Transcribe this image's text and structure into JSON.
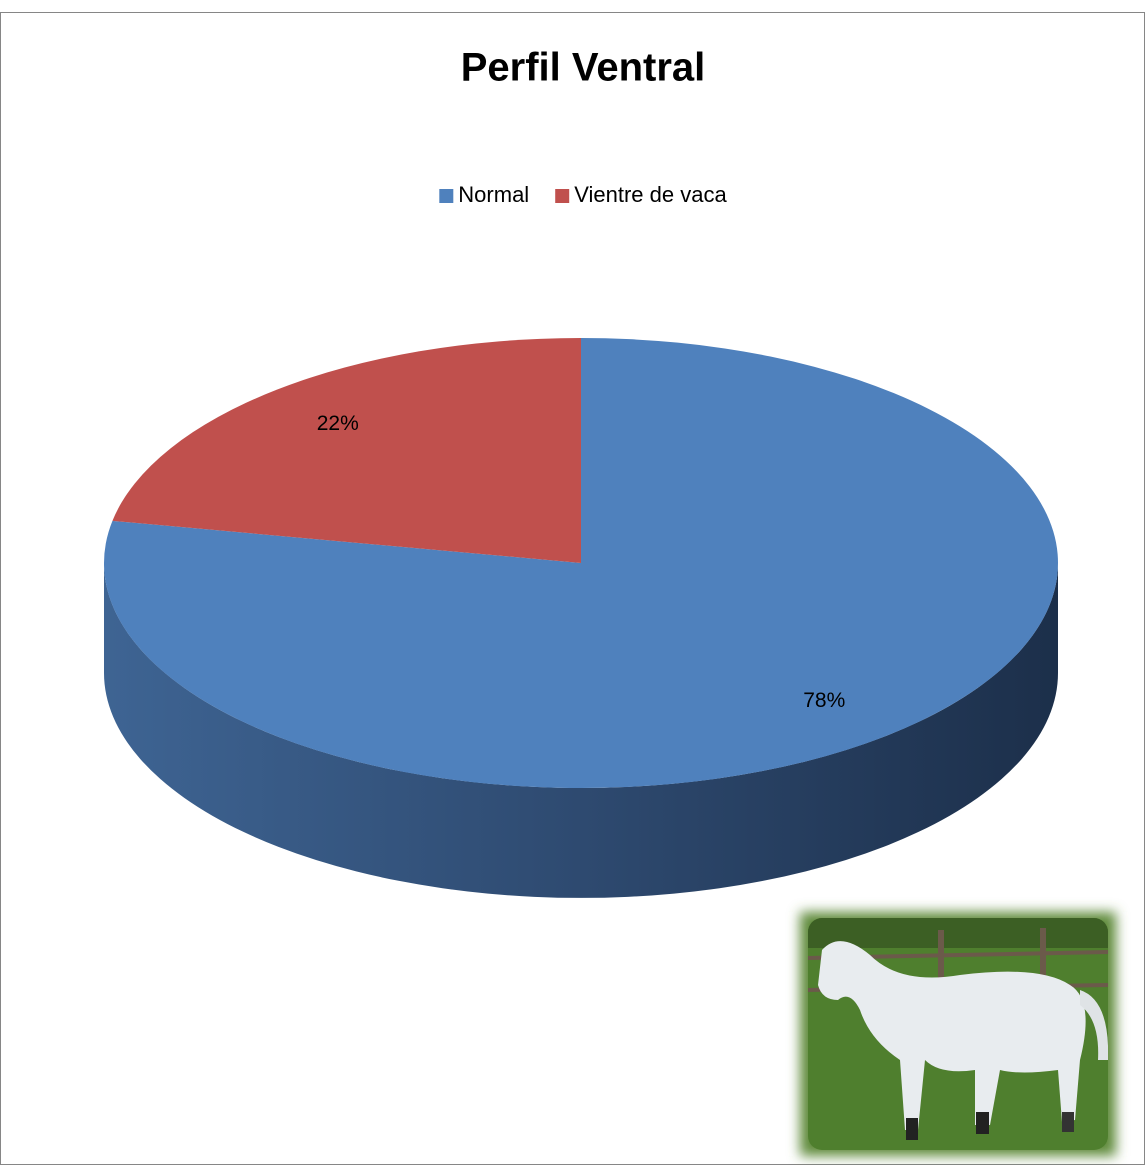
{
  "chart_data": {
    "type": "pie",
    "title": "Perfil Ventral",
    "categories": [
      "Normal",
      "Vientre de vaca"
    ],
    "values": [
      78,
      22
    ],
    "value_labels": [
      "78%",
      "22%"
    ],
    "colors": [
      "#4f81bd",
      "#c0504d"
    ],
    "legend": "top"
  }
}
